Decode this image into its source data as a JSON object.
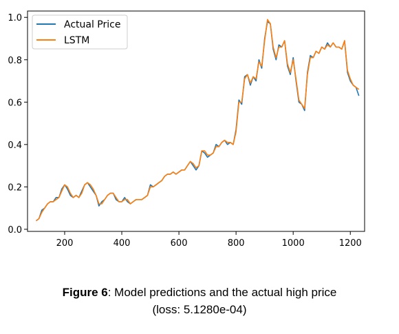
{
  "chart_data": {
    "type": "line",
    "title": "",
    "xlabel": "",
    "ylabel": "",
    "xlim": [
      70,
      1250
    ],
    "ylim": [
      -0.01,
      1.03
    ],
    "x_ticks": [
      200,
      400,
      600,
      800,
      1000,
      1200
    ],
    "y_ticks": [
      0.0,
      0.2,
      0.4,
      0.6,
      0.8,
      1.0
    ],
    "grid": false,
    "legend_position": "top-left",
    "series": [
      {
        "name": "Actual Price",
        "color": "#1f77b4",
        "x": [
          100,
          110,
          120,
          130,
          140,
          150,
          160,
          170,
          180,
          190,
          200,
          210,
          220,
          230,
          240,
          250,
          260,
          270,
          280,
          290,
          300,
          310,
          320,
          330,
          340,
          350,
          360,
          370,
          380,
          390,
          400,
          410,
          420,
          430,
          440,
          450,
          460,
          470,
          480,
          490,
          500,
          510,
          520,
          530,
          540,
          550,
          560,
          570,
          580,
          590,
          600,
          610,
          620,
          630,
          640,
          650,
          660,
          670,
          680,
          690,
          700,
          710,
          720,
          730,
          740,
          750,
          760,
          770,
          780,
          790,
          800,
          810,
          820,
          830,
          840,
          850,
          860,
          870,
          880,
          890,
          900,
          910,
          920,
          930,
          940,
          950,
          960,
          970,
          980,
          990,
          1000,
          1010,
          1020,
          1030,
          1040,
          1050,
          1060,
          1070,
          1080,
          1090,
          1100,
          1110,
          1120,
          1130,
          1140,
          1150,
          1160,
          1170,
          1180,
          1190,
          1200,
          1210,
          1220,
          1230
        ],
        "y": [
          0.04,
          0.05,
          0.09,
          0.1,
          0.12,
          0.13,
          0.13,
          0.15,
          0.15,
          0.19,
          0.21,
          0.19,
          0.16,
          0.15,
          0.16,
          0.15,
          0.18,
          0.21,
          0.22,
          0.2,
          0.18,
          0.16,
          0.11,
          0.13,
          0.14,
          0.16,
          0.17,
          0.17,
          0.14,
          0.13,
          0.13,
          0.15,
          0.13,
          0.12,
          0.13,
          0.14,
          0.14,
          0.14,
          0.15,
          0.16,
          0.21,
          0.2,
          0.21,
          0.22,
          0.23,
          0.25,
          0.26,
          0.26,
          0.27,
          0.26,
          0.27,
          0.28,
          0.28,
          0.3,
          0.32,
          0.3,
          0.28,
          0.3,
          0.37,
          0.36,
          0.34,
          0.35,
          0.36,
          0.4,
          0.39,
          0.41,
          0.42,
          0.4,
          0.41,
          0.4,
          0.47,
          0.61,
          0.59,
          0.72,
          0.73,
          0.68,
          0.72,
          0.7,
          0.8,
          0.76,
          0.9,
          0.98,
          0.97,
          0.85,
          0.8,
          0.87,
          0.86,
          0.89,
          0.77,
          0.73,
          0.81,
          0.7,
          0.6,
          0.59,
          0.56,
          0.74,
          0.82,
          0.81,
          0.84,
          0.83,
          0.86,
          0.85,
          0.88,
          0.86,
          0.88,
          0.86,
          0.86,
          0.85,
          0.89,
          0.74,
          0.7,
          0.68,
          0.67,
          0.63
        ]
      },
      {
        "name": "LSTM",
        "color": "#ff7f0e",
        "x": [
          100,
          110,
          120,
          130,
          140,
          150,
          160,
          170,
          180,
          190,
          200,
          210,
          220,
          230,
          240,
          250,
          260,
          270,
          280,
          290,
          300,
          310,
          320,
          330,
          340,
          350,
          360,
          370,
          380,
          390,
          400,
          410,
          420,
          430,
          440,
          450,
          460,
          470,
          480,
          490,
          500,
          510,
          520,
          530,
          540,
          550,
          560,
          570,
          580,
          590,
          600,
          610,
          620,
          630,
          640,
          650,
          660,
          670,
          680,
          690,
          700,
          710,
          720,
          730,
          740,
          750,
          760,
          770,
          780,
          790,
          800,
          810,
          820,
          830,
          840,
          850,
          860,
          870,
          880,
          890,
          900,
          910,
          920,
          930,
          940,
          950,
          960,
          970,
          980,
          990,
          1000,
          1010,
          1020,
          1030,
          1040,
          1050,
          1060,
          1070,
          1080,
          1090,
          1100,
          1110,
          1120,
          1130,
          1140,
          1150,
          1160,
          1170,
          1180,
          1190,
          1200,
          1210,
          1220,
          1230
        ],
        "y": [
          0.04,
          0.05,
          0.08,
          0.1,
          0.12,
          0.13,
          0.13,
          0.14,
          0.15,
          0.18,
          0.21,
          0.2,
          0.17,
          0.15,
          0.16,
          0.15,
          0.17,
          0.21,
          0.22,
          0.21,
          0.19,
          0.16,
          0.12,
          0.12,
          0.14,
          0.16,
          0.17,
          0.17,
          0.15,
          0.13,
          0.13,
          0.14,
          0.14,
          0.12,
          0.13,
          0.14,
          0.14,
          0.14,
          0.15,
          0.16,
          0.2,
          0.2,
          0.21,
          0.22,
          0.23,
          0.25,
          0.26,
          0.26,
          0.27,
          0.26,
          0.27,
          0.28,
          0.28,
          0.3,
          0.32,
          0.31,
          0.29,
          0.3,
          0.37,
          0.37,
          0.35,
          0.35,
          0.36,
          0.39,
          0.39,
          0.41,
          0.42,
          0.41,
          0.41,
          0.4,
          0.46,
          0.6,
          0.6,
          0.71,
          0.73,
          0.69,
          0.72,
          0.71,
          0.79,
          0.77,
          0.89,
          0.99,
          0.97,
          0.86,
          0.81,
          0.86,
          0.86,
          0.89,
          0.78,
          0.74,
          0.8,
          0.71,
          0.61,
          0.59,
          0.57,
          0.73,
          0.81,
          0.81,
          0.84,
          0.83,
          0.86,
          0.85,
          0.87,
          0.86,
          0.88,
          0.86,
          0.86,
          0.85,
          0.89,
          0.75,
          0.71,
          0.68,
          0.67,
          0.66
        ]
      }
    ]
  },
  "caption": {
    "bold": "Figure 6",
    "rest": ": Model predictions and the actual high price",
    "line2": "(loss: 5.1280e-04)"
  }
}
